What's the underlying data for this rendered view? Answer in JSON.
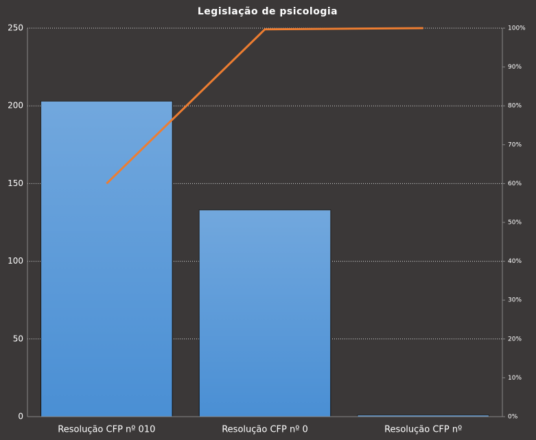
{
  "chart_data": {
    "type": "pareto",
    "title": "Legislação de psicologia",
    "categories": [
      "Resolução CFP nº 010",
      "Resolução CFP nº 0",
      "Resolução CFP nº"
    ],
    "series": [
      {
        "type": "bar",
        "color": "#4a8fd4",
        "values": [
          203,
          133,
          1
        ]
      },
      {
        "type": "line",
        "axis": "y2",
        "color": "#ed7d31",
        "values": [
          60,
          99.7,
          100
        ]
      }
    ],
    "ylim": [
      0,
      250
    ],
    "yticks": [
      0,
      50,
      100,
      150,
      200,
      250
    ],
    "y2lim": [
      0,
      100
    ],
    "y2ticks": [
      {
        "value": 0,
        "label": "0%"
      },
      {
        "value": 10,
        "label": "10%"
      },
      {
        "value": 20,
        "label": "20%"
      },
      {
        "value": 30,
        "label": "30%"
      },
      {
        "value": 40,
        "label": "40%"
      },
      {
        "value": 50,
        "label": "50%"
      },
      {
        "value": 60,
        "label": "60%"
      },
      {
        "value": 70,
        "label": "70%"
      },
      {
        "value": 80,
        "label": "80%"
      },
      {
        "value": 90,
        "label": "90%"
      },
      {
        "value": 100,
        "label": "100%"
      }
    ],
    "grid": true
  }
}
